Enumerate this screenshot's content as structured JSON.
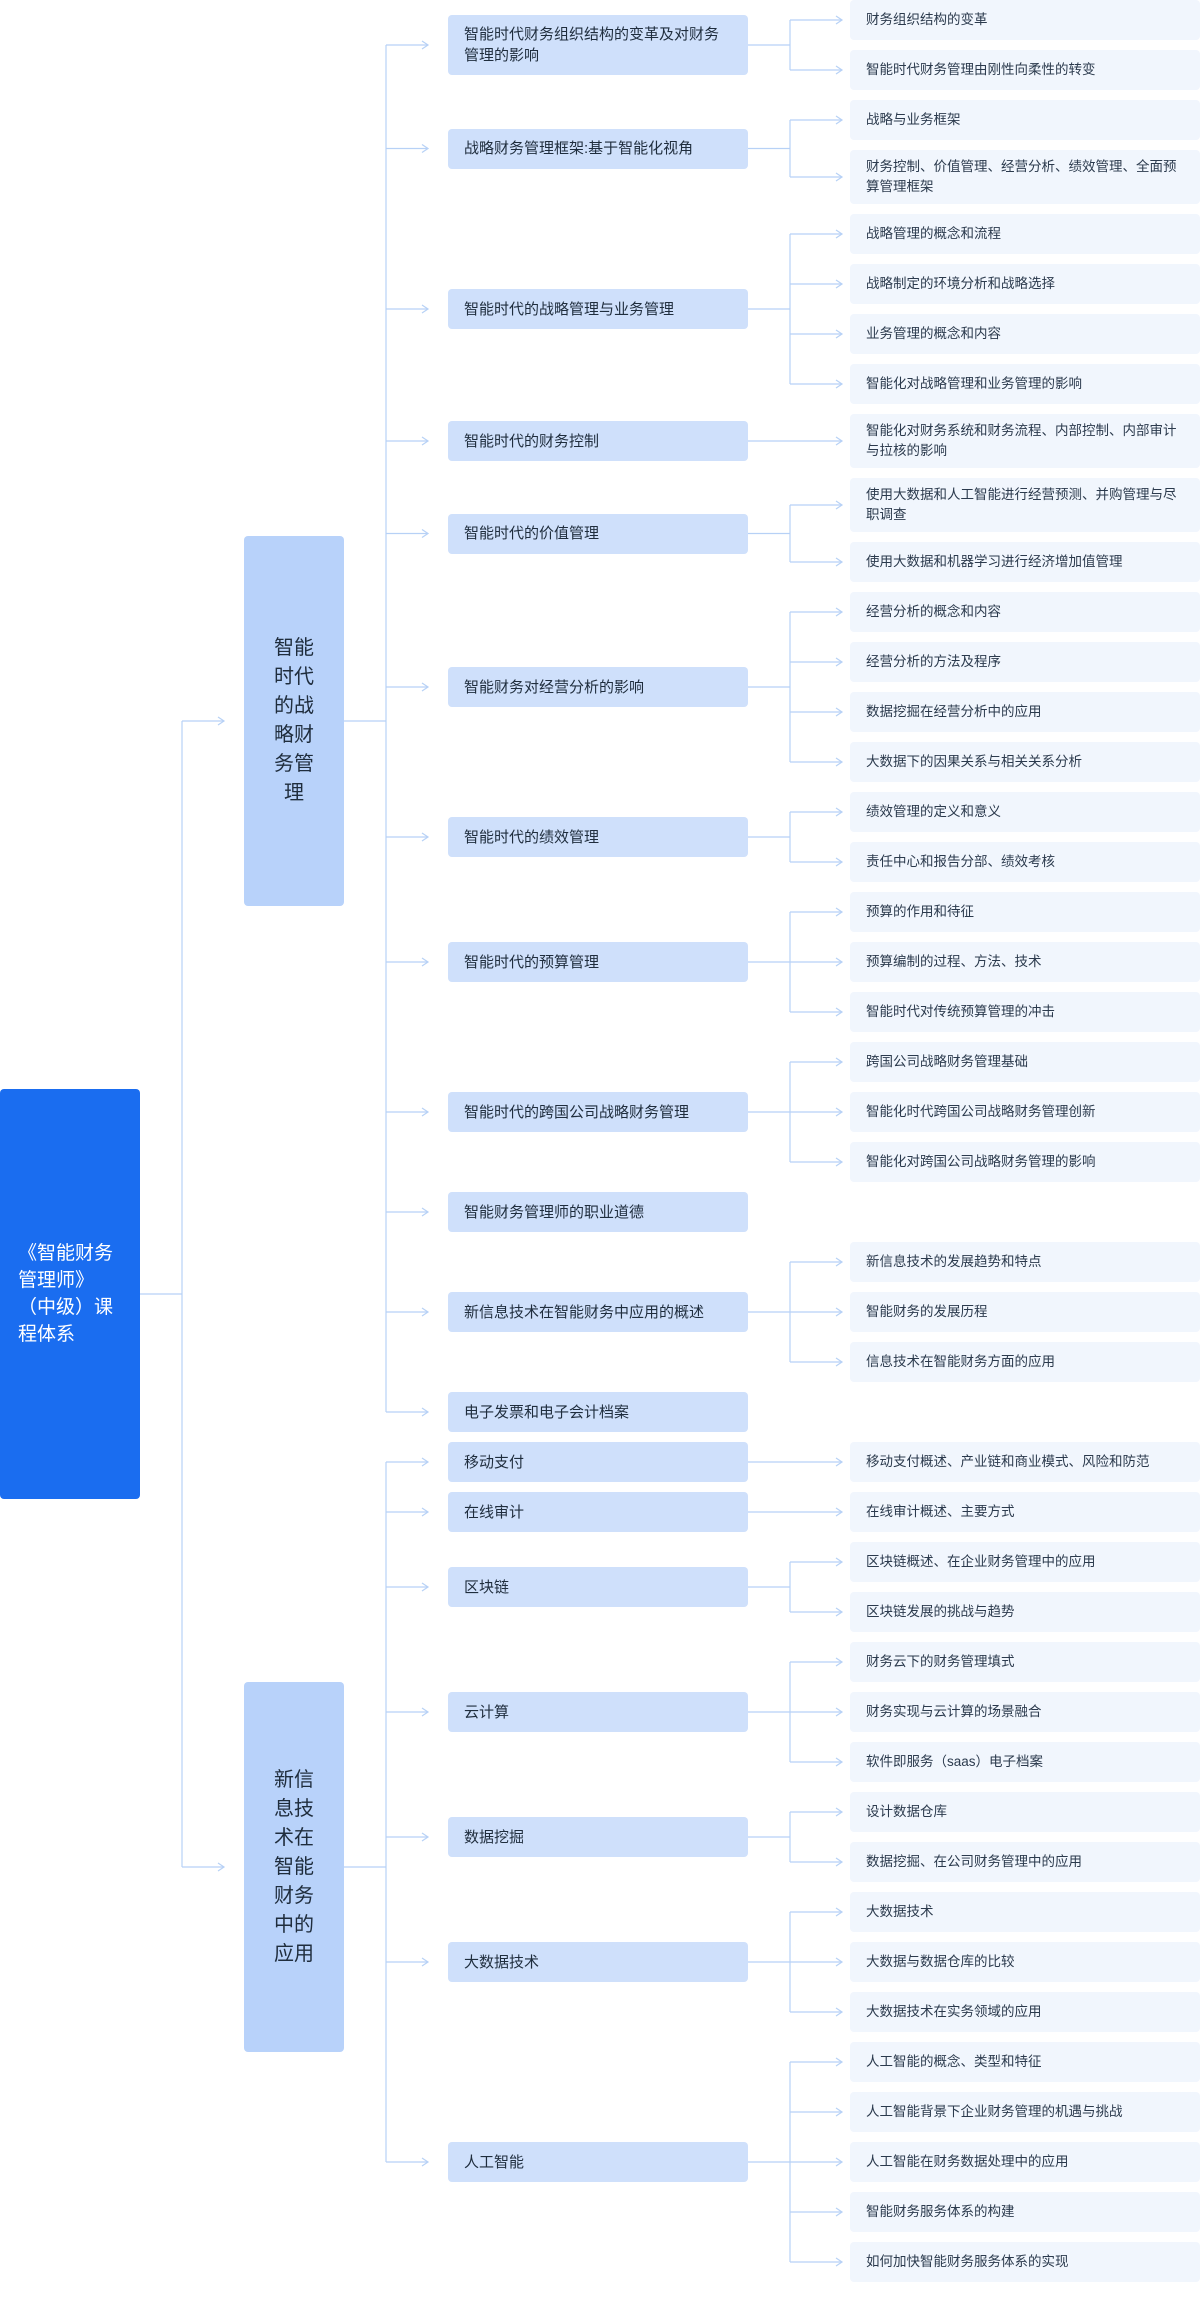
{
  "diagram": {
    "root": {
      "label": "《智能财务管理师》（中级）课程体系"
    },
    "branches": [
      {
        "label": "智能时代的战略财务管理",
        "topics": [
          {
            "label": "智能时代财务组织结构的变革及对财务管理的影响",
            "items": [
              "财务组织结构的变革",
              "智能时代财务管理由刚性向柔性的转变"
            ]
          },
          {
            "label": "战略财务管理框架:基于智能化视角",
            "items": [
              "战略与业务框架",
              "财务控制、价值管理、经营分析、绩效管理、全面预算管理框架"
            ]
          },
          {
            "label": "智能时代的战略管理与业务管理",
            "items": [
              "战略管理的概念和流程",
              "战略制定的环境分析和战略选择",
              "业务管理的概念和内容",
              "智能化对战略管理和业务管理的影响"
            ]
          },
          {
            "label": "智能时代的财务控制",
            "items": [
              "智能化对财务系统和财务流程、内部控制、内部审计与拉核的影响"
            ]
          },
          {
            "label": "智能时代的价值管理",
            "items": [
              "使用大数据和人工智能进行经营预测、并购管理与尽职调查",
              "使用大数据和机器学习进行经济增加值管理"
            ]
          },
          {
            "label": "智能财务对经营分析的影响",
            "items": [
              "经营分析的概念和内容",
              "经营分析的方法及程序",
              "数据挖掘在经营分析中的应用",
              "大数据下的因果关系与相关关系分析"
            ]
          },
          {
            "label": "智能时代的绩效管理",
            "items": [
              "绩效管理的定义和意义",
              "责任中心和报告分部、绩效考核"
            ]
          },
          {
            "label": "智能时代的预算管理",
            "items": [
              "预算的作用和待征",
              "预算编制的过程、方法、技术",
              "智能时代对传统预算管理的冲击"
            ]
          },
          {
            "label": "智能时代的跨国公司战略财务管理",
            "items": [
              "跨国公司战略财务管理基础",
              "智能化时代跨国公司战略财务管理创新",
              "智能化对跨国公司战略财务管理的影响"
            ]
          },
          {
            "label": "智能财务管理师的职业道德",
            "items": []
          },
          {
            "label": "新信息技术在智能财务中应用的概述",
            "items": [
              "新信息技术的发展趋势和特点",
              "智能财务的发展历程",
              "信息技术在智能财务方面的应用"
            ]
          },
          {
            "label": "电子发票和电子会计档案",
            "items": []
          }
        ]
      },
      {
        "label": "新信息技术在智能财务中的应用",
        "topics": [
          {
            "label": "移动支付",
            "items": [
              "移动支付概述、产业链和商业模式、风险和防范"
            ]
          },
          {
            "label": "在线审计",
            "items": [
              "在线审计概述、主要方式"
            ]
          },
          {
            "label": "区块链",
            "items": [
              "区块链概述、在企业财务管理中的应用",
              "区块链发展的挑战与趋势"
            ]
          },
          {
            "label": "云计算",
            "items": [
              "财务云下的财务管理填式",
              "财务实现与云计算的场景融合",
              "软件即服务（saas）电子档案"
            ]
          },
          {
            "label": "数据挖掘",
            "items": [
              "设计数据仓库",
              "数据挖掘、在公司财务管理中的应用"
            ]
          },
          {
            "label": "大数据技术",
            "items": [
              "大数据技术",
              "大数据与数据仓库的比较",
              "大数据技术在实务领域的应用"
            ]
          },
          {
            "label": "人工智能",
            "items": [
              "人工智能的概念、类型和特征",
              "人工智能背景下企业财务管理的机遇与挑战",
              "人工智能在财务数据处理中的应用",
              "智能财务服务体系的构建",
              "如何加快智能财务服务体系的实现"
            ]
          }
        ]
      }
    ]
  },
  "colors": {
    "root_fill": "#1a6df0",
    "branch_fill": "#b8d2fa",
    "topic_fill": "#cfe0fb",
    "leaf_fill": "#f1f6fd",
    "connector": "#b7d1f6"
  }
}
